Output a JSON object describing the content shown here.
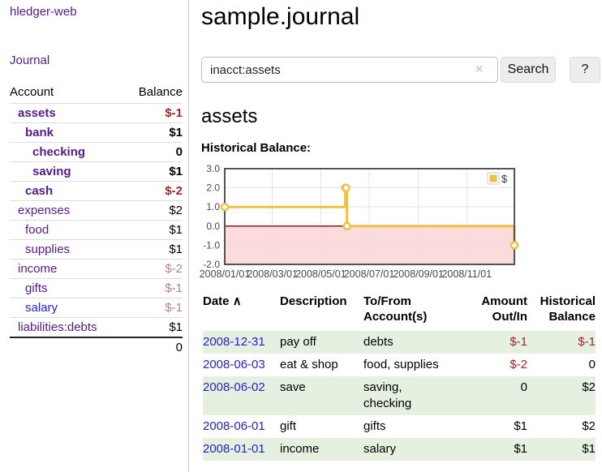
{
  "app_title": "hledger-web",
  "sidebar": {
    "journal_link": "Journal",
    "accounts_table": {
      "account_header": "Account",
      "balance_header": "Balance",
      "rows": [
        {
          "name": "assets",
          "depth": 1,
          "bold": true,
          "name_color": "purple",
          "balance": "$-1",
          "balance_color": "neg-strong"
        },
        {
          "name": "bank",
          "depth": 2,
          "bold": true,
          "name_color": "purple",
          "balance": "$1",
          "balance_color": "plain"
        },
        {
          "name": "checking",
          "depth": 3,
          "bold": true,
          "name_color": "purple",
          "balance": "0",
          "balance_color": "plain"
        },
        {
          "name": "saving",
          "depth": 3,
          "bold": true,
          "name_color": "purple",
          "balance": "$1",
          "balance_color": "plain"
        },
        {
          "name": "cash",
          "depth": 2,
          "bold": true,
          "name_color": "purple",
          "balance": "$-2",
          "balance_color": "neg-strong"
        },
        {
          "name": "expenses",
          "depth": 1,
          "bold": false,
          "name_color": "purple",
          "balance": "$2",
          "balance_color": "plain"
        },
        {
          "name": "food",
          "depth": 2,
          "bold": false,
          "name_color": "purple",
          "balance": "$1",
          "balance_color": "plain"
        },
        {
          "name": "supplies",
          "depth": 2,
          "bold": false,
          "name_color": "purple",
          "balance": "$1",
          "balance_color": "plain"
        },
        {
          "name": "income",
          "depth": 1,
          "bold": false,
          "name_color": "purple",
          "balance": "$-2",
          "balance_color": "neg-soft"
        },
        {
          "name": "gifts",
          "depth": 2,
          "bold": false,
          "name_color": "purple",
          "balance": "$-1",
          "balance_color": "neg-soft"
        },
        {
          "name": "salary",
          "depth": 2,
          "bold": false,
          "name_color": "blue",
          "balance": "$-1",
          "balance_color": "neg-soft"
        },
        {
          "name": "liabilities:debts",
          "depth": 1,
          "bold": false,
          "name_color": "purple",
          "balance": "$1",
          "balance_color": "plain"
        }
      ],
      "total": "0"
    }
  },
  "main": {
    "title": "sample.journal",
    "search": {
      "query": "inacct:assets",
      "clear_icon": "×",
      "search_button": "Search",
      "help_button": "?"
    },
    "account_heading": "assets",
    "chart_title": "Historical Balance:"
  },
  "chart_data": {
    "type": "line",
    "steps": true,
    "title": "Historical Balance:",
    "x": [
      "2008-01-01",
      "2008-06-01",
      "2008-06-02",
      "2008-06-03",
      "2008-12-31"
    ],
    "series": [
      {
        "name": "$",
        "color": "#edc240",
        "values": [
          1,
          2,
          2,
          0,
          -1
        ]
      }
    ],
    "xlim": [
      "2008-01-01",
      "2008-12-31"
    ],
    "ylim": [
      -2,
      3
    ],
    "yticks": [
      3,
      2,
      1,
      0,
      -1,
      -2
    ],
    "xticks": [
      "2008/01/01",
      "2008/03/01",
      "2008/05/01",
      "2008/07/01",
      "2008/09/01",
      "2008/11/01"
    ],
    "legend": {
      "label": "$",
      "position": "top-right"
    },
    "grid": true,
    "grid_color": "#e3e3e3",
    "border_color": "#545454",
    "zero_line_color": "#8b1a1a",
    "negative_region_color": "#fbdbdb",
    "marker_fill": "#ffffff",
    "tick_label_color": "#4a4a4a"
  },
  "register": {
    "headers": {
      "date": "Date",
      "sort_arrow": "∧",
      "description": "Description",
      "accounts": "To/From Account(s)",
      "amount": "Amount Out/In",
      "balance": "Historical Balance"
    },
    "rows": [
      {
        "date": "2008-12-31",
        "description": "pay off",
        "accounts": "debts",
        "amount": "$-1",
        "amount_color": "neg-strong",
        "balance": "$-1",
        "balance_color": "neg-strong",
        "shaded": true
      },
      {
        "date": "2008-06-03",
        "description": "eat & shop",
        "accounts": "food, supplies",
        "amount": "$-2",
        "amount_color": "neg-strong",
        "balance": "0",
        "balance_color": "plain",
        "shaded": false
      },
      {
        "date": "2008-06-02",
        "description": "save",
        "accounts": "saving, checking",
        "amount": "0",
        "amount_color": "plain",
        "balance": "$2",
        "balance_color": "plain",
        "shaded": true
      },
      {
        "date": "2008-06-01",
        "description": "gift",
        "accounts": "gifts",
        "amount": "$1",
        "amount_color": "plain",
        "balance": "$2",
        "balance_color": "plain",
        "shaded": false
      },
      {
        "date": "2008-01-01",
        "description": "income",
        "accounts": "salary",
        "amount": "$1",
        "amount_color": "plain",
        "balance": "$1",
        "balance_color": "plain",
        "shaded": true
      }
    ]
  },
  "colors": {
    "purple_link": "#551a8b",
    "blue_link": "#2323cc",
    "negative_strong": "#a02626",
    "negative_soft": "#c08080",
    "row_shade": "#e5f0e0",
    "series_gold": "#edc240"
  }
}
